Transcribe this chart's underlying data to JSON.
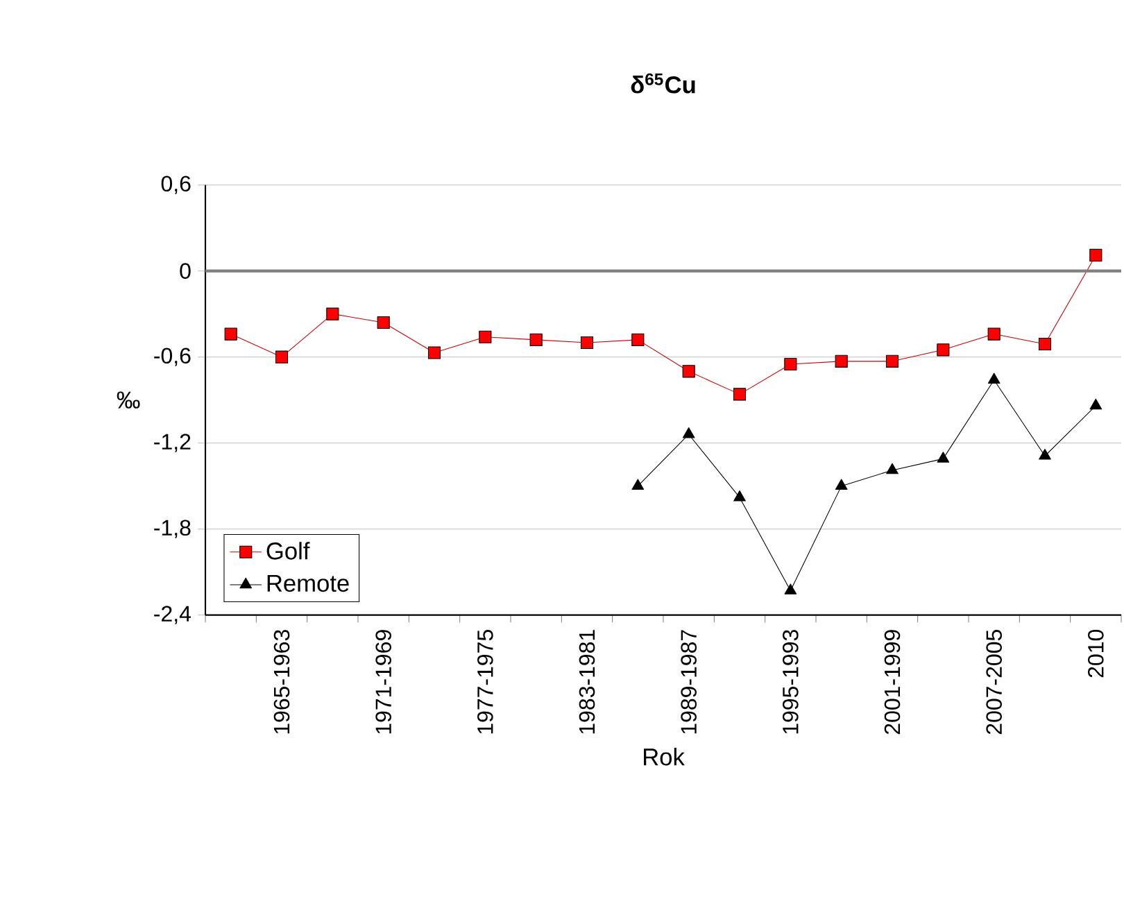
{
  "chart_data": {
    "type": "line",
    "title": "**δ$^{65}$Cu**",
    "xlabel": "Rok",
    "ylabel": "‰",
    "categories": [
      null,
      "1965-1963",
      null,
      "1971-1969",
      null,
      "1977-1975",
      null,
      "1983-1981",
      null,
      "1989-1987",
      null,
      "1995-1993",
      null,
      "2001-1999",
      null,
      "2007-2005",
      null,
      "2010"
    ],
    "series": [
      {
        "name": "Golf",
        "color": "#cc0000",
        "marker": "square",
        "values": [
          -0.44,
          -0.6,
          -0.3,
          -0.36,
          -0.57,
          -0.46,
          -0.48,
          -0.5,
          -0.48,
          -0.7,
          -0.86,
          -0.65,
          -0.63,
          -0.63,
          -0.55,
          -0.44,
          -0.51,
          0.11
        ]
      },
      {
        "name": "Remote",
        "color": "#000000",
        "marker": "triangle",
        "values": [
          null,
          null,
          null,
          null,
          null,
          null,
          null,
          null,
          -1.5,
          -1.14,
          -1.58,
          -2.23,
          -1.5,
          -1.39,
          -1.31,
          -0.76,
          -1.29,
          -0.94
        ]
      }
    ],
    "ylim": [
      -2.4,
      0.6
    ],
    "yticks": [
      {
        "value": -2.4,
        "label": "-2,4"
      },
      {
        "value": -1.8,
        "label": "-1,8"
      },
      {
        "value": -1.2,
        "label": "-1,2"
      },
      {
        "value": -0.6,
        "label": "-0,6"
      },
      {
        "value": 0,
        "label": "0"
      },
      {
        "value": 0.6,
        "label": "0,6"
      }
    ],
    "ref_lines": [
      {
        "axis": "y",
        "value": 0,
        "color": "#808080"
      }
    ],
    "grid": "y",
    "legend": "bottom left"
  }
}
